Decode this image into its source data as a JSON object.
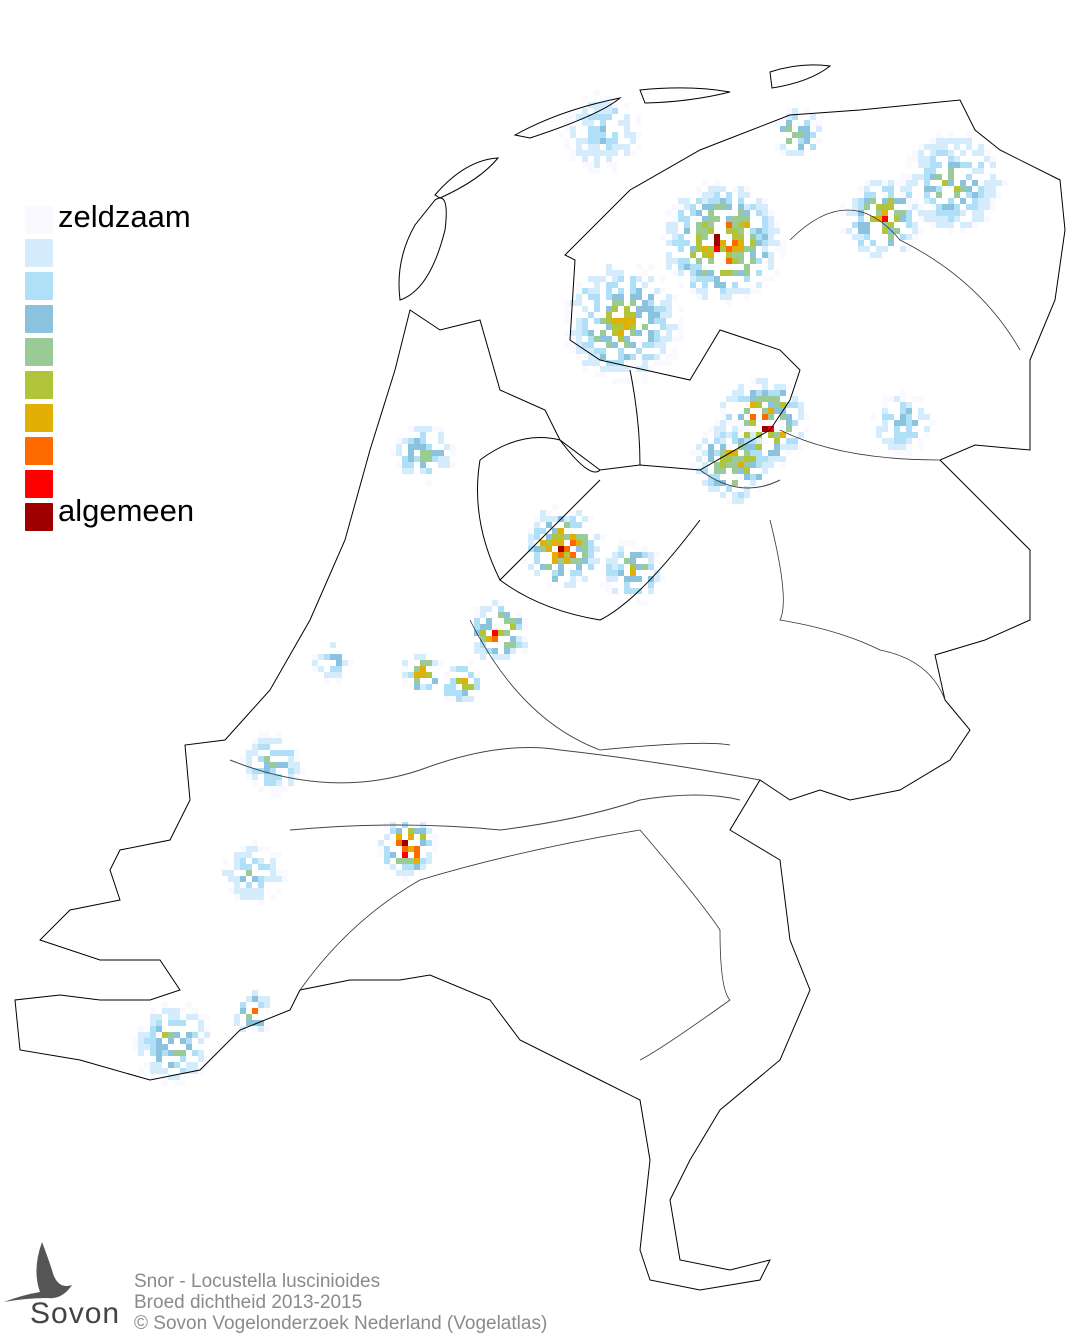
{
  "legend": {
    "top_label": "zeldzaam",
    "bottom_label": "algemeen",
    "colors": [
      "#f9f9ff",
      "#d4ecfb",
      "#afe0f8",
      "#8bc3df",
      "#9acb96",
      "#b1c43a",
      "#e2b004",
      "#ff6a00",
      "#ff0000",
      "#9e0000"
    ]
  },
  "footer": {
    "species": "Snor - Locustella luscinioides",
    "subtitle": "Broed dichtheid 2013-2015",
    "copyright": "© Sovon Vogelonderzoek Nederland (Vogelatlas)"
  },
  "logo": {
    "text": "Sovon"
  }
}
